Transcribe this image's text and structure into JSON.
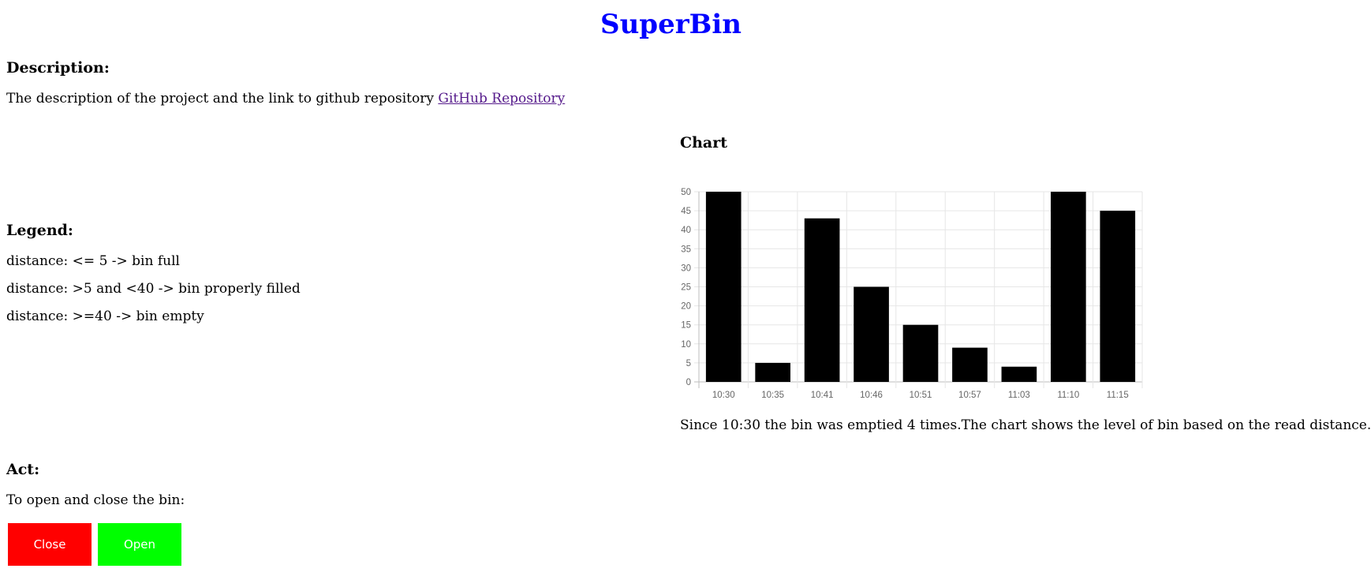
{
  "header": {
    "title": "SuperBin"
  },
  "description": {
    "heading": "Description:",
    "text": "The description of the project and the link to github repository",
    "link_label": "GitHub Repository"
  },
  "legend": {
    "heading": "Legend:",
    "items": [
      "distance: <= 5 -> bin full",
      "distance: >5 and <40 -> bin properly filled",
      "distance: >=40 -> bin empty"
    ]
  },
  "act": {
    "heading": "Act:",
    "text": "To open and close the bin:",
    "close_label": "Close",
    "open_label": "Open",
    "close_color": "#ff0000",
    "open_color": "#00ff00"
  },
  "chart_section": {
    "heading": "Chart",
    "caption": "Since 10:30 the bin was emptied 4 times.The chart shows the level of bin based on the read distance."
  },
  "chart_data": {
    "type": "bar",
    "categories": [
      "10:30",
      "10:35",
      "10:41",
      "10:46",
      "10:51",
      "10:57",
      "11:03",
      "11:10",
      "11:15"
    ],
    "values": [
      50,
      5,
      43,
      25,
      15,
      9,
      4,
      50,
      45
    ],
    "ylim": [
      0,
      50
    ],
    "yticks": [
      0,
      5,
      10,
      15,
      20,
      25,
      30,
      35,
      40,
      45,
      50
    ],
    "bar_color": "#000000",
    "grid": true,
    "legend": "none"
  }
}
